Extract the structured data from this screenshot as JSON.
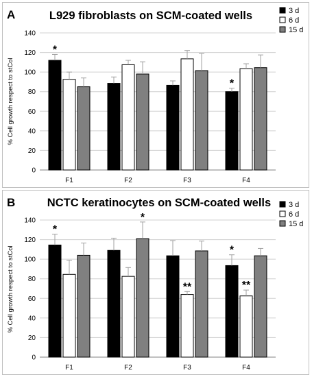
{
  "chart_data": [
    {
      "type": "bar",
      "panel_label": "A",
      "title": "L929 fibroblasts on SCM-coated wells",
      "ylabel": "% Cell growth respect to stCol",
      "xlabel": "",
      "ylim": [
        0,
        140
      ],
      "yticks": [
        0,
        20,
        40,
        60,
        80,
        100,
        120,
        140
      ],
      "grid": true,
      "legend_position": "top-right",
      "categories": [
        "F1",
        "F2",
        "F3",
        "F4"
      ],
      "series": [
        {
          "name": "3 d",
          "color": "#000000",
          "values": [
            112,
            88.5,
            86.5,
            80
          ],
          "errors": [
            6,
            6.5,
            4.5,
            3.5
          ],
          "significance": [
            "*",
            "",
            "",
            "*"
          ]
        },
        {
          "name": "6 d",
          "color": "#ffffff",
          "values": [
            92.5,
            107.5,
            113.5,
            103.5
          ],
          "errors": [
            7.5,
            4.5,
            8.5,
            5
          ],
          "significance": [
            "",
            "",
            "",
            ""
          ]
        },
        {
          "name": "15 d",
          "color": "#808080",
          "values": [
            85,
            98,
            101.5,
            104.5
          ],
          "errors": [
            9,
            12.5,
            17.5,
            13
          ],
          "significance": [
            "",
            "",
            "",
            ""
          ]
        }
      ]
    },
    {
      "type": "bar",
      "panel_label": "B",
      "title": "NCTC keratinocytes on SCM-coated wells",
      "ylabel": "% Cell growth respect to stCol",
      "xlabel": "",
      "ylim": [
        0,
        140
      ],
      "yticks": [
        0,
        20,
        40,
        60,
        80,
        100,
        120,
        140
      ],
      "grid": true,
      "legend_position": "top-right",
      "categories": [
        "F1",
        "F2",
        "F3",
        "F4"
      ],
      "series": [
        {
          "name": "3 d",
          "color": "#000000",
          "values": [
            114.5,
            109,
            103.5,
            93.5
          ],
          "errors": [
            11,
            12.5,
            15.5,
            11
          ],
          "significance": [
            "*",
            "",
            "",
            "*"
          ]
        },
        {
          "name": "6 d",
          "color": "#ffffff",
          "values": [
            84.5,
            82.5,
            64,
            62.5
          ],
          "errors": [
            14.5,
            9,
            3,
            6
          ],
          "significance": [
            "",
            "",
            "**",
            "**"
          ]
        },
        {
          "name": "15 d",
          "color": "#808080",
          "values": [
            104,
            121,
            108.5,
            103.5
          ],
          "errors": [
            12.5,
            17,
            10,
            7.5
          ],
          "significance": [
            "",
            "*",
            "",
            ""
          ]
        }
      ]
    }
  ]
}
